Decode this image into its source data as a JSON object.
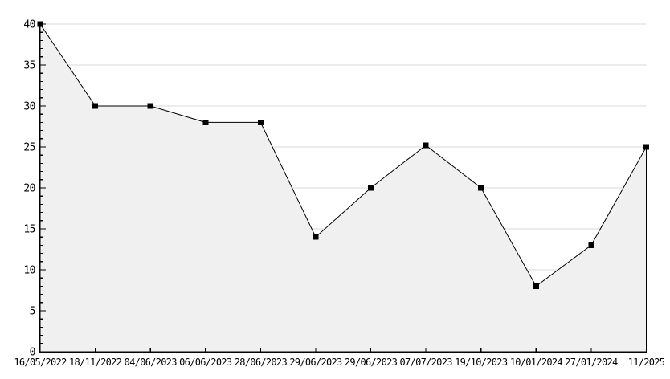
{
  "chart_data": {
    "type": "area",
    "title": "",
    "xlabel": "",
    "ylabel": "",
    "categories": [
      "16/05/2022",
      "18/11/2022",
      "04/06/2023",
      "06/06/2023",
      "28/06/2023",
      "29/06/2023",
      "29/06/2023",
      "07/07/2023",
      "19/10/2023",
      "10/01/2024",
      "27/01/2024",
      "11/2025"
    ],
    "values": [
      40,
      30,
      30,
      28,
      28,
      14,
      20,
      25.2,
      20,
      8,
      13,
      25
    ],
    "ylim": [
      0,
      40
    ],
    "ytick_major": 5,
    "ytick_minor": 1,
    "y_tick_labels": [
      "0",
      "5",
      "10",
      "15",
      "20",
      "25",
      "30",
      "35",
      "40"
    ],
    "grid": true,
    "legend": "none",
    "style": {
      "line_color": "#000000",
      "marker_color": "#000000",
      "marker_shape": "square",
      "fill_color": "#f0f0f0",
      "grid_color": "#d8d8d8",
      "axis_color": "#000000",
      "text_color": "#000000",
      "background": "#ffffff"
    }
  }
}
